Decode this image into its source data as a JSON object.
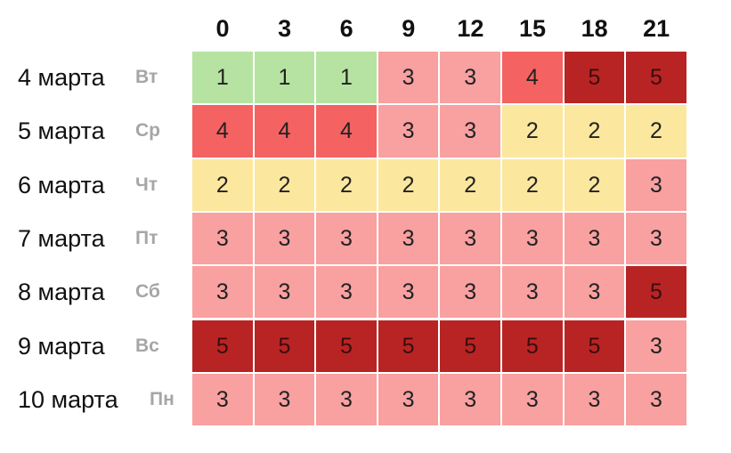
{
  "chart_data": {
    "type": "heatmap",
    "x": [
      "0",
      "3",
      "6",
      "9",
      "12",
      "15",
      "18",
      "21"
    ],
    "rows": [
      {
        "date": "4 марта",
        "dow": "Вт",
        "values": [
          1,
          1,
          1,
          3,
          3,
          4,
          5,
          5
        ]
      },
      {
        "date": "5 марта",
        "dow": "Ср",
        "values": [
          4,
          4,
          4,
          3,
          3,
          2,
          2,
          2
        ]
      },
      {
        "date": "6 марта",
        "dow": "Чт",
        "values": [
          2,
          2,
          2,
          2,
          2,
          2,
          2,
          3
        ]
      },
      {
        "date": "7 марта",
        "dow": "Пт",
        "values": [
          3,
          3,
          3,
          3,
          3,
          3,
          3,
          3
        ]
      },
      {
        "date": "8 марта",
        "dow": "Сб",
        "values": [
          3,
          3,
          3,
          3,
          3,
          3,
          3,
          5
        ]
      },
      {
        "date": "9 марта",
        "dow": "Вс",
        "values": [
          5,
          5,
          5,
          5,
          5,
          5,
          5,
          3
        ]
      },
      {
        "date": "10 марта",
        "dow": "Пн",
        "values": [
          3,
          3,
          3,
          3,
          3,
          3,
          3,
          3
        ]
      }
    ],
    "color_scale": {
      "1": "#b6e3a1",
      "2": "#fbe79e",
      "3": "#f9a0a0",
      "4": "#f56262",
      "5": "#b82424"
    }
  }
}
